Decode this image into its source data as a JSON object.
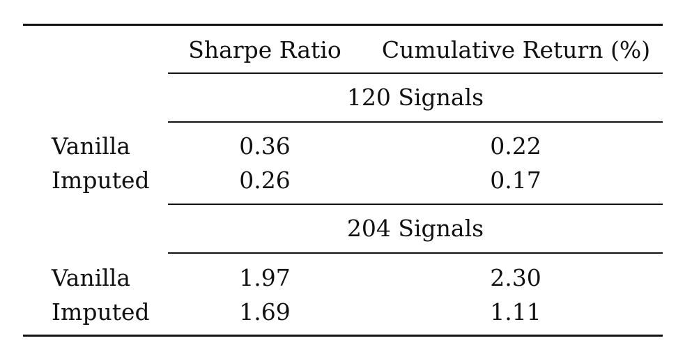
{
  "table": {
    "headers": {
      "stub": "",
      "sharpe": "Sharpe Ratio",
      "cumulative": "Cumulative Return (%)"
    },
    "groups": [
      {
        "title": "120 Signals",
        "rows": [
          {
            "label": "Vanilla",
            "sharpe": "0.36",
            "cumulative": "0.22"
          },
          {
            "label": "Imputed",
            "sharpe": "0.26",
            "cumulative": "0.17"
          }
        ]
      },
      {
        "title": "204 Signals",
        "rows": [
          {
            "label": "Vanilla",
            "sharpe": "1.97",
            "cumulative": "2.30"
          },
          {
            "label": "Imputed",
            "sharpe": "1.69",
            "cumulative": "1.11"
          }
        ]
      }
    ]
  }
}
